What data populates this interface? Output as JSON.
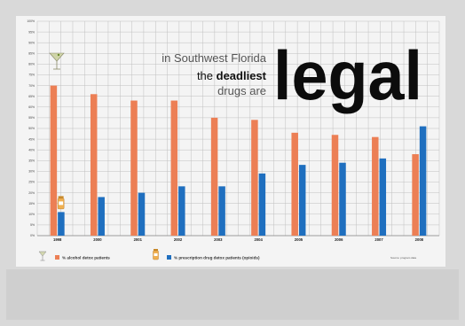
{
  "headline": {
    "line1": "in Southwest Florida",
    "line2_prefix": "the",
    "line2_bold": "deadliest",
    "line3": "drugs are",
    "big_word": "legal"
  },
  "legend": {
    "alcohol": "% alcohol detox patients",
    "opioid": "% prescription drug detox patients (opioids)",
    "source": "Source: program data"
  },
  "colors": {
    "alcohol": "#ec7f55",
    "opioid": "#1f6fbf",
    "grid": "#bfbfbf",
    "background": "#f4f4f4"
  },
  "icons": [
    "martini-glass-icon",
    "pill-bottle-icon"
  ],
  "chart_data": {
    "type": "bar",
    "categories": [
      "1998",
      "2000",
      "2001",
      "2002",
      "2003",
      "2004",
      "2005",
      "2006",
      "2007",
      "2008"
    ],
    "ylim": [
      0,
      100
    ],
    "yticks": [
      "0%",
      "5%",
      "10%",
      "15%",
      "20%",
      "25%",
      "30%",
      "35%",
      "40%",
      "45%",
      "50%",
      "55%",
      "60%",
      "65%",
      "70%",
      "75%",
      "80%",
      "85%",
      "90%",
      "95%",
      "100%"
    ],
    "grid": true,
    "legend_position": "bottom-left",
    "series": [
      {
        "name": "% alcohol detox patients",
        "values": [
          70,
          66,
          63,
          63,
          55,
          54,
          48,
          47,
          46,
          38
        ]
      },
      {
        "name": "% prescription drug detox patients (opioids)",
        "values": [
          11,
          18,
          20,
          23,
          23,
          29,
          33,
          34,
          36,
          51
        ]
      }
    ]
  }
}
